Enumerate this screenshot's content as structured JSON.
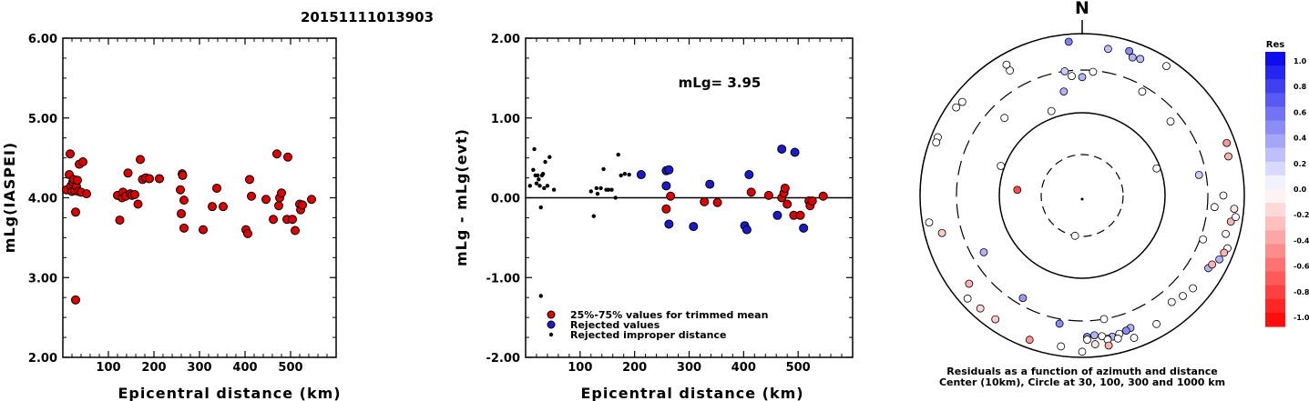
{
  "title": "20151111013903",
  "chart_data": [
    {
      "type": "scatter",
      "xlabel": "Epicentral distance (km)",
      "ylabel": "mLg(IASPEI)",
      "xlim": [
        0,
        600
      ],
      "ylim": [
        2.0,
        6.0
      ],
      "x_ticks": [
        "100",
        "200",
        "300",
        "400",
        "500"
      ],
      "y_ticks": [
        "2.00",
        "3.00",
        "4.00",
        "5.00",
        "6.00"
      ],
      "marker_color": "#dd0000",
      "points": [
        [
          8,
          4.1
        ],
        [
          14,
          4.29
        ],
        [
          16,
          4.55
        ],
        [
          18,
          4.15
        ],
        [
          20,
          4.08
        ],
        [
          22,
          4.2
        ],
        [
          24,
          4.23
        ],
        [
          26,
          4.09
        ],
        [
          28,
          3.82
        ],
        [
          30,
          4.14
        ],
        [
          32,
          4.22
        ],
        [
          34,
          4.08
        ],
        [
          36,
          4.42
        ],
        [
          40,
          4.07
        ],
        [
          44,
          4.45
        ],
        [
          52,
          4.05
        ],
        [
          28,
          2.72
        ],
        [
          120,
          4.03
        ],
        [
          125,
          3.72
        ],
        [
          130,
          4.0
        ],
        [
          132,
          4.07
        ],
        [
          138,
          4.02
        ],
        [
          143,
          4.31
        ],
        [
          148,
          4.05
        ],
        [
          152,
          4.03
        ],
        [
          158,
          4.04
        ],
        [
          165,
          3.92
        ],
        [
          170,
          4.48
        ],
        [
          175,
          4.23
        ],
        [
          182,
          4.25
        ],
        [
          190,
          4.24
        ],
        [
          212,
          4.24
        ],
        [
          258,
          4.1
        ],
        [
          260,
          3.8
        ],
        [
          262,
          4.3
        ],
        [
          263,
          4.28
        ],
        [
          266,
          3.97
        ],
        [
          266,
          3.62
        ],
        [
          308,
          3.6
        ],
        [
          328,
          3.89
        ],
        [
          338,
          4.12
        ],
        [
          352,
          3.89
        ],
        [
          402,
          3.6
        ],
        [
          406,
          3.55
        ],
        [
          410,
          4.23
        ],
        [
          414,
          4.02
        ],
        [
          446,
          3.98
        ],
        [
          462,
          3.73
        ],
        [
          470,
          4.55
        ],
        [
          474,
          3.9
        ],
        [
          476,
          4.0
        ],
        [
          480,
          4.06
        ],
        [
          492,
          3.73
        ],
        [
          494,
          4.51
        ],
        [
          504,
          3.73
        ],
        [
          510,
          3.59
        ],
        [
          520,
          3.92
        ],
        [
          522,
          3.85
        ],
        [
          526,
          3.91
        ],
        [
          546,
          3.98
        ]
      ]
    },
    {
      "type": "scatter",
      "xlabel": "Epicentral distance (km)",
      "ylabel": "mLg - mLg(evt)",
      "xlim": [
        0,
        600
      ],
      "ylim": [
        -2.0,
        2.0
      ],
      "x_ticks": [
        "100",
        "200",
        "300",
        "400",
        "500"
      ],
      "y_ticks": [
        "-2.00",
        "-1.00",
        "0.00",
        "1.00",
        "2.00"
      ],
      "annotation": "mLg= 3.95",
      "legend": [
        "25%-75% values for trimmed mean",
        "Rejected values",
        "Rejected improper distance"
      ],
      "colors": {
        "trimmed": "#dd0000",
        "rejected": "#1a1acc",
        "improper": "#000000"
      },
      "series": [
        {
          "name": "25%-75% values for trimmed mean",
          "points": [
            [
              258,
              -0.14
            ],
            [
              266,
              0.02
            ],
            [
              328,
              -0.05
            ],
            [
              352,
              -0.06
            ],
            [
              414,
              0.07
            ],
            [
              446,
              0.03
            ],
            [
              470,
              0.0
            ],
            [
              474,
              0.06
            ],
            [
              476,
              0.12
            ],
            [
              480,
              -0.08
            ],
            [
              492,
              -0.22
            ],
            [
              504,
              -0.22
            ],
            [
              520,
              -0.04
            ],
            [
              522,
              -0.1
            ],
            [
              526,
              -0.04
            ],
            [
              546,
              0.02
            ]
          ]
        },
        {
          "name": "Rejected values",
          "points": [
            [
              212,
              0.29
            ],
            [
              258,
              0.34
            ],
            [
              258,
              0.15
            ],
            [
              263,
              0.35
            ],
            [
              263,
              -0.33
            ],
            [
              308,
              -0.36
            ],
            [
              338,
              0.17
            ],
            [
              402,
              -0.35
            ],
            [
              406,
              -0.4
            ],
            [
              410,
              0.29
            ],
            [
              462,
              -0.22
            ],
            [
              470,
              0.61
            ],
            [
              494,
              0.57
            ],
            [
              510,
              -0.38
            ]
          ]
        },
        {
          "name": "Rejected improper distance",
          "points": [
            [
              8,
              0.15
            ],
            [
              14,
              0.35
            ],
            [
              16,
              0.61
            ],
            [
              18,
              0.28
            ],
            [
              20,
              0.18
            ],
            [
              22,
              0.28
            ],
            [
              24,
              0.23
            ],
            [
              26,
              0.15
            ],
            [
              28,
              -0.12
            ],
            [
              30,
              0.28
            ],
            [
              32,
              0.3
            ],
            [
              34,
              0.12
            ],
            [
              36,
              0.45
            ],
            [
              40,
              0.15
            ],
            [
              44,
              0.51
            ],
            [
              52,
              0.1
            ],
            [
              28,
              -1.23
            ],
            [
              120,
              0.08
            ],
            [
              125,
              -0.23
            ],
            [
              130,
              0.12
            ],
            [
              132,
              0.05
            ],
            [
              138,
              0.12
            ],
            [
              143,
              0.36
            ],
            [
              148,
              0.1
            ],
            [
              152,
              0.1
            ],
            [
              158,
              0.1
            ],
            [
              165,
              0.0
            ],
            [
              170,
              0.54
            ],
            [
              175,
              0.28
            ],
            [
              182,
              0.3
            ],
            [
              190,
              0.29
            ]
          ]
        }
      ]
    },
    {
      "type": "scatter",
      "polar": true,
      "north_label": "N",
      "caption": [
        "Residuals as a function of azimuth and distance",
        "Center (10km), Circle at 30, 100, 300 and 1000 km"
      ],
      "rings_km": [
        30,
        100,
        300,
        1000
      ],
      "colorbar": {
        "title": "Res",
        "ticks": [
          "1.0",
          "0.8",
          "0.6",
          "0.4",
          "0.2",
          "0.0",
          "-0.2",
          "-0.4",
          "-0.6",
          "-0.8",
          "-1.0"
        ],
        "range": [
          -1.0,
          1.0
        ],
        "positive_color": "#0000ee",
        "negative_color": "#ff0000"
      },
      "points": [
        [
          -5,
          780,
          0.5
        ],
        [
          18,
          720,
          0.45
        ],
        [
          20,
          610,
          0.3
        ],
        [
          23,
          640,
          0.25
        ],
        [
          -30,
          560,
          0.0
        ],
        [
          10,
          650,
          0.25
        ],
        [
          33,
          780,
          0.0
        ],
        [
          -52,
          720,
          0.0
        ],
        [
          -68,
          810,
          0.0
        ],
        [
          -170,
          30,
          0.0
        ],
        [
          -85,
          60,
          -0.7
        ],
        [
          -10,
          180,
          0.3
        ],
        [
          -8,
          300,
          0.2
        ],
        [
          -5,
          260,
          0.0
        ],
        [
          0,
          250,
          0.3
        ],
        [
          5,
          290,
          0.0
        ],
        [
          -45,
          200,
          0.0
        ],
        [
          -20,
          120,
          0.0
        ],
        [
          30,
          260,
          0.0
        ],
        [
          50,
          230,
          0.0
        ],
        [
          70,
          90,
          0.0
        ],
        [
          80,
          250,
          0.2
        ],
        [
          -70,
          110,
          0.0
        ],
        [
          -120,
          220,
          0.3
        ],
        [
          -150,
          250,
          0.4
        ],
        [
          -170,
          350,
          0.45
        ],
        [
          170,
          300,
          0.0
        ],
        [
          110,
          330,
          0.0
        ],
        [
          95,
          380,
          0.0
        ],
        [
          90,
          500,
          0.0
        ],
        [
          75,
          700,
          -0.3
        ],
        [
          70,
          760,
          -0.4
        ],
        [
          95,
          730,
          -0.1
        ],
        [
          100,
          690,
          -0.3
        ],
        [
          105,
          640,
          -0.05
        ],
        [
          98,
          790,
          0.0
        ],
        [
          110,
          780,
          0.0
        ],
        [
          120,
          580,
          0.3
        ],
        [
          130,
          560,
          0.0
        ],
        [
          118,
          610,
          -0.3
        ],
        [
          115,
          700,
          0.3
        ],
        [
          112,
          740,
          -0.3
        ],
        [
          135,
          520,
          0.0
        ],
        [
          140,
          470,
          0.0
        ],
        [
          160,
          500,
          0.3
        ],
        [
          162,
          520,
          0.45
        ],
        [
          165,
          540,
          0.0
        ],
        [
          168,
          560,
          0.3
        ],
        [
          170,
          580,
          0.0
        ],
        [
          172,
          520,
          0.0
        ],
        [
          175,
          490,
          0.3
        ],
        [
          178,
          510,
          0.5
        ],
        [
          178,
          560,
          0.0
        ],
        [
          170,
          600,
          0.0
        ],
        [
          166,
          620,
          0.0
        ],
        [
          175,
          660,
          -0.1
        ],
        [
          170,
          730,
          -0.3
        ],
        [
          180,
          830,
          0.0
        ],
        [
          188,
          730,
          0.0
        ],
        [
          160,
          710,
          0.0
        ],
        [
          150,
          640,
          0.0
        ],
        [
          200,
          760,
          -0.4
        ],
        [
          215,
          700,
          -0.2
        ],
        [
          222,
          720,
          -0.15
        ],
        [
          232,
          540,
          -0.3
        ],
        [
          228,
          770,
          0.0
        ],
        [
          255,
          570,
          -0.2
        ],
        [
          260,
          800,
          0.0
        ],
        [
          290,
          800,
          0.0
        ],
        [
          305,
          760,
          0.0
        ],
        [
          330,
          700,
          0.0
        ]
      ]
    }
  ]
}
